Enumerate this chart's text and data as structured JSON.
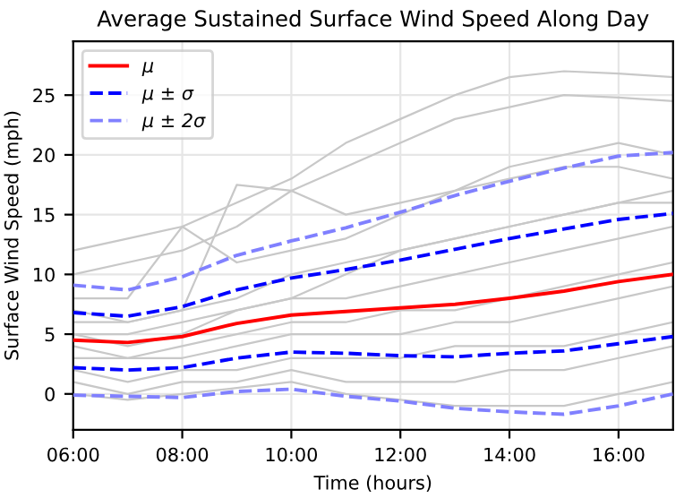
{
  "chart_data": {
    "type": "line",
    "title": "Average Sustained Surface Wind Speed Along Day",
    "xlabel": "Time (hours)",
    "ylabel": "Surface Wind Speed (mph)",
    "x": [
      6,
      7,
      8,
      9,
      10,
      11,
      12,
      13,
      14,
      15,
      16,
      17
    ],
    "xlim": [
      6,
      17
    ],
    "xticks": [
      {
        "value": 6,
        "label": "06:00"
      },
      {
        "value": 8,
        "label": "08:00"
      },
      {
        "value": 10,
        "label": "10:00"
      },
      {
        "value": 12,
        "label": "12:00"
      },
      {
        "value": 14,
        "label": "14:00"
      },
      {
        "value": 16,
        "label": "16:00"
      }
    ],
    "ylim": [
      -3,
      29.5
    ],
    "yticks": [
      0,
      5,
      10,
      15,
      20,
      25
    ],
    "grid": true,
    "legend": "top left",
    "marker": "none",
    "series": [
      {
        "color": "#c8c8c8",
        "line_style": "solid",
        "values": [
          12,
          13,
          14,
          16,
          18,
          21,
          23,
          25,
          26.5,
          27,
          26.8,
          26.5
        ]
      },
      {
        "color": "#c8c8c8",
        "line_style": "solid",
        "values": [
          10,
          11,
          12,
          14,
          17,
          19,
          21,
          23,
          24,
          25,
          24.8,
          24.5
        ]
      },
      {
        "color": "#c8c8c8",
        "line_style": "solid",
        "values": [
          8,
          8,
          14,
          11,
          12,
          13,
          15,
          17,
          19,
          20,
          21,
          20
        ]
      },
      {
        "color": "#c8c8c8",
        "line_style": "solid",
        "values": [
          7,
          6,
          7,
          17.5,
          17,
          15,
          16,
          17,
          18,
          19,
          19,
          18
        ]
      },
      {
        "color": "#c8c8c8",
        "line_style": "solid",
        "values": [
          5,
          4,
          5,
          7,
          8,
          10,
          12,
          13,
          14,
          15,
          16,
          17
        ]
      },
      {
        "color": "#c8c8c8",
        "line_style": "solid",
        "values": [
          4,
          3,
          4,
          5,
          6,
          6,
          7,
          7,
          8,
          9,
          10,
          11
        ]
      },
      {
        "color": "#c8c8c8",
        "line_style": "solid",
        "values": [
          3,
          3,
          3,
          4,
          5,
          5,
          5,
          6,
          6,
          7,
          8,
          9
        ]
      },
      {
        "color": "#c8c8c8",
        "line_style": "solid",
        "values": [
          2,
          1,
          2,
          2,
          3,
          3,
          3,
          4,
          4,
          4,
          5,
          6
        ]
      },
      {
        "color": "#c8c8c8",
        "line_style": "solid",
        "values": [
          1,
          0,
          1,
          1,
          2,
          1,
          1,
          1,
          2,
          2,
          3,
          4
        ]
      },
      {
        "color": "#c8c8c8",
        "line_style": "solid",
        "values": [
          6,
          6,
          7,
          8,
          10,
          11,
          12,
          13,
          14,
          15,
          16,
          16
        ]
      },
      {
        "color": "#c8c8c8",
        "line_style": "solid",
        "values": [
          0,
          -0.5,
          0,
          0.5,
          1,
          0,
          -0.5,
          -1,
          -1,
          -1,
          0,
          1
        ]
      },
      {
        "color": "#c8c8c8",
        "line_style": "solid",
        "values": [
          5,
          5,
          6,
          7,
          8,
          8,
          9,
          10,
          11,
          12,
          13,
          14
        ]
      },
      {
        "name": "μ",
        "color": "#ff0000",
        "line_style": "solid",
        "values": [
          4.5,
          4.3,
          4.8,
          5.9,
          6.6,
          6.9,
          7.2,
          7.5,
          8.0,
          8.6,
          9.4,
          10.0
        ]
      },
      {
        "name": "μ ± σ",
        "color": "#0000ff",
        "line_style": "dashed",
        "values": [
          6.8,
          6.5,
          7.3,
          8.7,
          9.7,
          10.4,
          11.2,
          12.1,
          13.0,
          13.8,
          14.6,
          15.1
        ]
      },
      {
        "color": "#0000ff",
        "line_style": "dashed",
        "values": [
          2.2,
          2.0,
          2.2,
          3.0,
          3.5,
          3.4,
          3.2,
          3.1,
          3.4,
          3.6,
          4.2,
          4.8
        ]
      },
      {
        "name": "μ ± 2σ",
        "color": "#8080ff",
        "line_style": "dashed",
        "values": [
          9.1,
          8.7,
          9.8,
          11.6,
          12.8,
          13.9,
          15.2,
          16.6,
          17.8,
          18.9,
          19.9,
          20.2
        ]
      },
      {
        "color": "#8080ff",
        "line_style": "dashed",
        "values": [
          -0.1,
          -0.2,
          -0.3,
          0.2,
          0.4,
          -0.2,
          -0.6,
          -1.2,
          -1.5,
          -1.7,
          -1.0,
          0.0
        ]
      }
    ]
  }
}
